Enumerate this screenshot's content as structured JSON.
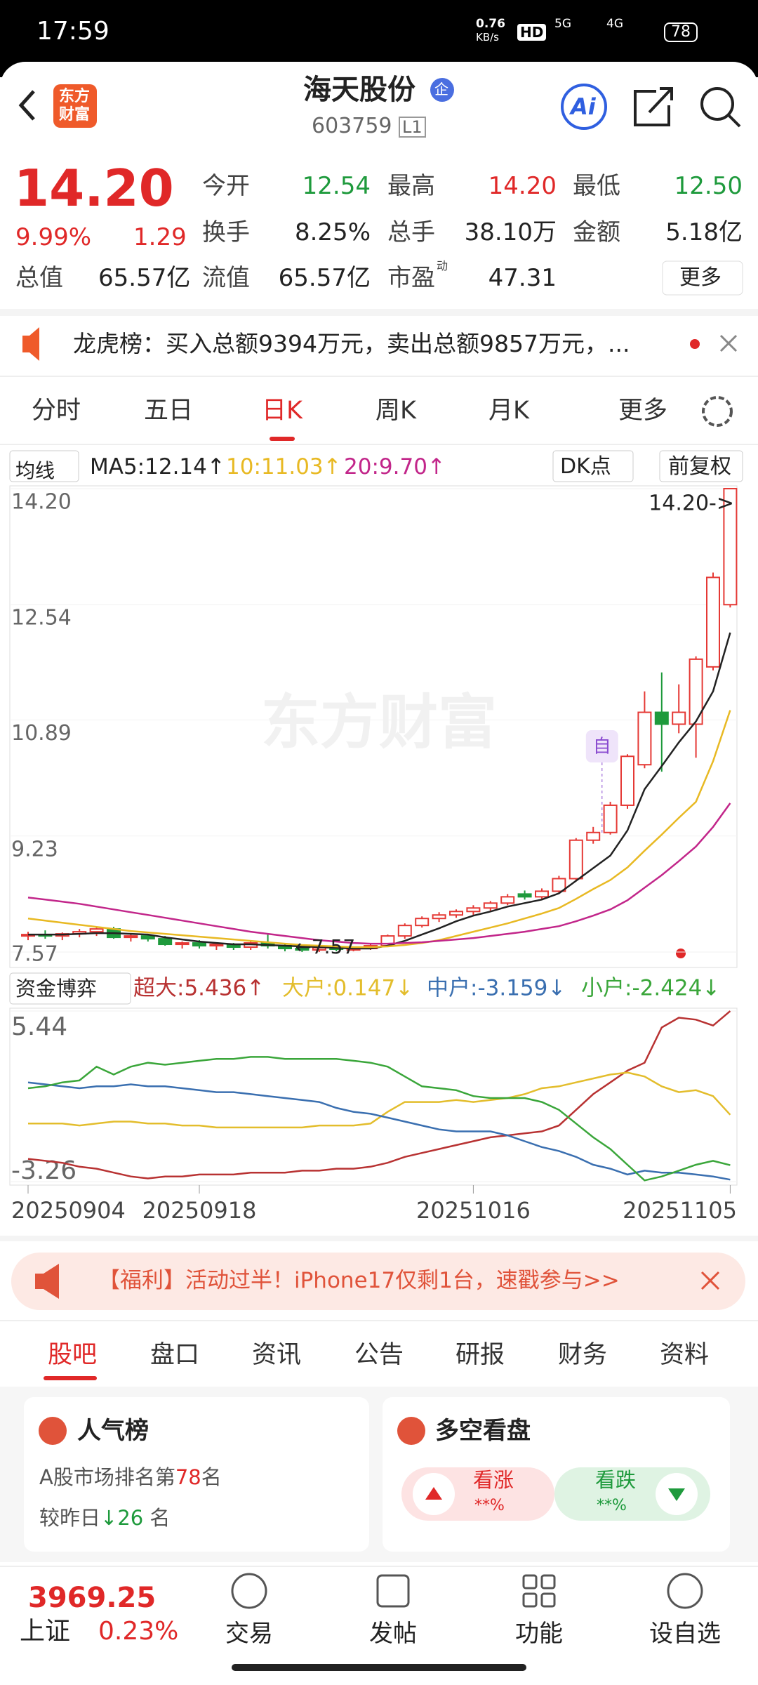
{
  "status_bar": {
    "time": "17:59",
    "speed": "0.76",
    "speed_unit": "KB/s",
    "hd": "HD",
    "net1": "5G",
    "net2": "4G",
    "battery": "78"
  },
  "header": {
    "logo_lines": [
      "东方",
      "财富"
    ],
    "title": "海天股份",
    "badge": "企",
    "code": "603759",
    "level": "L1",
    "ai": "Ai"
  },
  "quote": {
    "price": "14.20",
    "change_pct": "9.99%",
    "change": "1.29",
    "stats": [
      {
        "label": "今开",
        "value": "12.54"
      },
      {
        "label": "最高",
        "value": "14.20"
      },
      {
        "label": "最低",
        "value": "12.50"
      },
      {
        "label": "换手",
        "value": "8.25%"
      },
      {
        "label": "总手",
        "value": "38.10万"
      },
      {
        "label": "金额",
        "value": "5.18亿"
      },
      {
        "label": "流值",
        "value": "65.57亿"
      },
      {
        "label": "市盈",
        "sup": "动",
        "value": "47.31"
      }
    ],
    "total_value": {
      "label": "总值",
      "value": "65.57亿"
    },
    "more": "更多"
  },
  "news": "龙虎榜：买入总额9394万元，卖出总额9857万元，...",
  "tabs": [
    "分时",
    "五日",
    "日K",
    "周K",
    "月K",
    "更多"
  ],
  "kline_bar": {
    "ma_selector": "均线",
    "ma5": "MA5:12.14↑",
    "ma10": "10:11.03↑",
    "ma20": "20:9.70↑",
    "dk": "DK点",
    "adjust": "前复权"
  },
  "chart_data": [
    {
      "type": "candlestick",
      "watermark": "东方财富",
      "high_note": "14.20->",
      "low_note": "←7.57",
      "marker": "自",
      "ylim": [
        7.57,
        14.2
      ],
      "yticks": [
        {
          "value": 14.2,
          "label": "14.20"
        },
        12.54,
        10.89,
        9.23,
        7.57
      ],
      "grid": true,
      "candles": [
        {
          "o": 7.8,
          "h": 7.86,
          "l": 7.74,
          "c": 7.82
        },
        {
          "o": 7.82,
          "h": 7.88,
          "l": 7.76,
          "c": 7.8
        },
        {
          "o": 7.8,
          "h": 7.85,
          "l": 7.74,
          "c": 7.83
        },
        {
          "o": 7.83,
          "h": 7.9,
          "l": 7.78,
          "c": 7.86
        },
        {
          "o": 7.86,
          "h": 7.92,
          "l": 7.8,
          "c": 7.9
        },
        {
          "o": 7.9,
          "h": 7.93,
          "l": 7.76,
          "c": 7.78
        },
        {
          "o": 7.78,
          "h": 7.84,
          "l": 7.72,
          "c": 7.8
        },
        {
          "o": 7.8,
          "h": 7.83,
          "l": 7.72,
          "c": 7.76
        },
        {
          "o": 7.76,
          "h": 7.8,
          "l": 7.66,
          "c": 7.68
        },
        {
          "o": 7.68,
          "h": 7.72,
          "l": 7.62,
          "c": 7.7
        },
        {
          "o": 7.7,
          "h": 7.74,
          "l": 7.62,
          "c": 7.66
        },
        {
          "o": 7.66,
          "h": 7.7,
          "l": 7.6,
          "c": 7.68
        },
        {
          "o": 7.68,
          "h": 7.7,
          "l": 7.6,
          "c": 7.64
        },
        {
          "o": 7.64,
          "h": 7.72,
          "l": 7.6,
          "c": 7.7
        },
        {
          "o": 7.7,
          "h": 7.82,
          "l": 7.62,
          "c": 7.66
        },
        {
          "o": 7.66,
          "h": 7.7,
          "l": 7.58,
          "c": 7.62
        },
        {
          "o": 7.62,
          "h": 7.66,
          "l": 7.57,
          "c": 7.6
        },
        {
          "o": 7.6,
          "h": 7.66,
          "l": 7.57,
          "c": 7.63
        },
        {
          "o": 7.63,
          "h": 7.66,
          "l": 7.58,
          "c": 7.61
        },
        {
          "o": 7.61,
          "h": 7.64,
          "l": 7.58,
          "c": 7.62
        },
        {
          "o": 7.62,
          "h": 7.7,
          "l": 7.6,
          "c": 7.66
        },
        {
          "o": 7.66,
          "h": 7.82,
          "l": 7.64,
          "c": 7.8
        },
        {
          "o": 7.8,
          "h": 7.98,
          "l": 7.76,
          "c": 7.95
        },
        {
          "o": 7.95,
          "h": 8.08,
          "l": 7.92,
          "c": 8.05
        },
        {
          "o": 8.05,
          "h": 8.14,
          "l": 8.0,
          "c": 8.1
        },
        {
          "o": 8.1,
          "h": 8.18,
          "l": 8.06,
          "c": 8.15
        },
        {
          "o": 8.15,
          "h": 8.24,
          "l": 8.1,
          "c": 8.2
        },
        {
          "o": 8.2,
          "h": 8.3,
          "l": 8.16,
          "c": 8.27
        },
        {
          "o": 8.27,
          "h": 8.4,
          "l": 8.24,
          "c": 8.36
        },
        {
          "o": 8.4,
          "h": 8.45,
          "l": 8.32,
          "c": 8.36
        },
        {
          "o": 8.36,
          "h": 8.48,
          "l": 8.33,
          "c": 8.44
        },
        {
          "o": 8.44,
          "h": 8.66,
          "l": 8.42,
          "c": 8.62
        },
        {
          "o": 8.62,
          "h": 9.2,
          "l": 8.58,
          "c": 9.17
        },
        {
          "o": 9.17,
          "h": 9.36,
          "l": 9.12,
          "c": 9.28
        },
        {
          "o": 9.28,
          "h": 9.72,
          "l": 9.25,
          "c": 9.67
        },
        {
          "o": 9.67,
          "h": 10.4,
          "l": 9.62,
          "c": 10.37
        },
        {
          "o": 10.25,
          "h": 11.3,
          "l": 10.2,
          "c": 11.0
        },
        {
          "o": 11.0,
          "h": 11.57,
          "l": 10.15,
          "c": 10.83
        },
        {
          "o": 10.83,
          "h": 11.4,
          "l": 10.7,
          "c": 11.0
        },
        {
          "o": 10.83,
          "h": 11.8,
          "l": 10.35,
          "c": 11.76
        },
        {
          "o": 11.65,
          "h": 13.0,
          "l": 11.6,
          "c": 12.93
        },
        {
          "o": 12.54,
          "h": 14.2,
          "l": 12.5,
          "c": 14.2
        }
      ],
      "up_color": "#e53935",
      "down_color": "#1e9a3c",
      "series": [
        {
          "name": "MA5",
          "color": "#222222",
          "values": [
            7.82,
            7.82,
            7.82,
            7.83,
            7.84,
            7.84,
            7.83,
            7.82,
            7.78,
            7.75,
            7.72,
            7.7,
            7.68,
            7.68,
            7.67,
            7.66,
            7.65,
            7.64,
            7.63,
            7.62,
            7.62,
            7.66,
            7.73,
            7.82,
            7.91,
            8.01,
            8.09,
            8.15,
            8.22,
            8.27,
            8.32,
            8.41,
            8.59,
            8.77,
            8.95,
            9.31,
            9.9,
            10.23,
            10.57,
            10.87,
            11.3,
            12.14
          ]
        },
        {
          "name": "MA10",
          "color": "#e8b923",
          "values": [
            8.05,
            8.02,
            7.99,
            7.96,
            7.93,
            7.9,
            7.87,
            7.85,
            7.83,
            7.81,
            7.79,
            7.77,
            7.75,
            7.73,
            7.71,
            7.69,
            7.67,
            7.66,
            7.65,
            7.64,
            7.64,
            7.65,
            7.67,
            7.7,
            7.74,
            7.8,
            7.86,
            7.92,
            7.98,
            8.05,
            8.12,
            8.2,
            8.33,
            8.47,
            8.6,
            8.78,
            9.02,
            9.25,
            9.49,
            9.72,
            10.3,
            11.03
          ]
        },
        {
          "name": "MA20",
          "color": "#c2268a",
          "values": [
            8.35,
            8.32,
            8.29,
            8.26,
            8.22,
            8.18,
            8.14,
            8.1,
            8.06,
            8.02,
            7.98,
            7.94,
            7.9,
            7.86,
            7.83,
            7.8,
            7.77,
            7.74,
            7.72,
            7.7,
            7.69,
            7.69,
            7.7,
            7.71,
            7.73,
            7.75,
            7.77,
            7.8,
            7.83,
            7.86,
            7.9,
            7.94,
            8.01,
            8.09,
            8.18,
            8.31,
            8.49,
            8.67,
            8.87,
            9.08,
            9.36,
            9.7
          ]
        }
      ]
    },
    {
      "type": "line",
      "title": "资金博弈",
      "ylim": [
        -3.26,
        5.44
      ],
      "yticks": [
        5.44,
        -3.26
      ],
      "categories": [
        "20250904",
        null,
        null,
        null,
        null,
        null,
        null,
        null,
        null,
        null,
        "20250918",
        null,
        null,
        null,
        null,
        null,
        null,
        null,
        null,
        null,
        null,
        null,
        null,
        null,
        null,
        null,
        "20251016",
        null,
        null,
        null,
        null,
        null,
        null,
        null,
        null,
        null,
        null,
        null,
        null,
        null,
        null,
        "20251105"
      ],
      "series": [
        {
          "name": "超大:5.436↑",
          "color": "#b83232",
          "values": [
            -2.1,
            -2.2,
            -2.3,
            -2.5,
            -2.6,
            -2.8,
            -3.0,
            -3.1,
            -3.0,
            -3.0,
            -2.9,
            -2.9,
            -2.9,
            -2.8,
            -2.8,
            -2.8,
            -2.7,
            -2.7,
            -2.6,
            -2.6,
            -2.5,
            -2.3,
            -2.0,
            -1.8,
            -1.6,
            -1.4,
            -1.2,
            -1.0,
            -0.9,
            -0.8,
            -0.7,
            -0.4,
            0.4,
            1.2,
            1.8,
            2.4,
            2.8,
            4.6,
            5.1,
            5.0,
            4.7,
            5.436
          ]
        },
        {
          "name": "大户:0.147↓",
          "color": "#e3bd2c",
          "values": [
            -0.3,
            -0.3,
            -0.3,
            -0.4,
            -0.3,
            -0.2,
            -0.2,
            -0.3,
            -0.3,
            -0.4,
            -0.4,
            -0.5,
            -0.5,
            -0.5,
            -0.5,
            -0.5,
            -0.5,
            -0.4,
            -0.4,
            -0.4,
            -0.3,
            0.3,
            0.8,
            0.8,
            0.8,
            0.9,
            0.8,
            0.9,
            1.0,
            1.2,
            1.5,
            1.6,
            1.8,
            2.0,
            2.2,
            2.3,
            2.1,
            1.6,
            1.3,
            1.4,
            1.1,
            0.147
          ]
        },
        {
          "name": "中户:-3.159↓",
          "color": "#3a6fb0",
          "values": [
            1.8,
            1.7,
            1.6,
            1.5,
            1.6,
            1.6,
            1.7,
            1.6,
            1.6,
            1.5,
            1.4,
            1.3,
            1.3,
            1.2,
            1.1,
            1.0,
            0.9,
            0.8,
            0.5,
            0.3,
            0.2,
            0.0,
            -0.2,
            -0.4,
            -0.6,
            -0.7,
            -0.7,
            -0.7,
            -0.9,
            -1.2,
            -1.5,
            -1.7,
            -2.0,
            -2.4,
            -2.6,
            -2.9,
            -2.7,
            -2.8,
            -2.8,
            -2.9,
            -3.0,
            -3.159
          ]
        },
        {
          "name": "小户:-2.424↓",
          "color": "#3aa63a",
          "values": [
            1.5,
            1.6,
            1.8,
            1.9,
            2.6,
            2.2,
            2.6,
            2.8,
            2.7,
            2.8,
            2.9,
            3.0,
            3.0,
            3.1,
            3.1,
            3.0,
            3.0,
            3.0,
            3.0,
            2.9,
            2.8,
            2.6,
            2.1,
            1.6,
            1.5,
            1.4,
            1.1,
            1.0,
            1.0,
            1.0,
            0.8,
            0.4,
            -0.3,
            -1.0,
            -1.6,
            -2.4,
            -3.2,
            -3.0,
            -2.7,
            -2.4,
            -2.2,
            -2.424
          ]
        }
      ]
    }
  ],
  "banner": "【福利】活动过半！iPhone17仅剩1台，速戳参与>>",
  "tabs2": [
    "股吧",
    "盘口",
    "资讯",
    "公告",
    "研报",
    "财务",
    "资料"
  ],
  "cards": {
    "popularity": {
      "title": "人气榜",
      "line1": [
        "A股市场排名第",
        "78",
        "名"
      ],
      "line2": [
        "较昨日",
        "↓26",
        " 名"
      ]
    },
    "sentiment": {
      "title": "多空看盘",
      "up": "看涨",
      "up_value": "**%",
      "down": "看跌",
      "down_value": "**%"
    }
  },
  "bottom": {
    "index_value": "3969.25",
    "index_name": "上证",
    "index_change": "0.23%",
    "nav": [
      "交易",
      "发帖",
      "功能",
      "设自选"
    ]
  }
}
